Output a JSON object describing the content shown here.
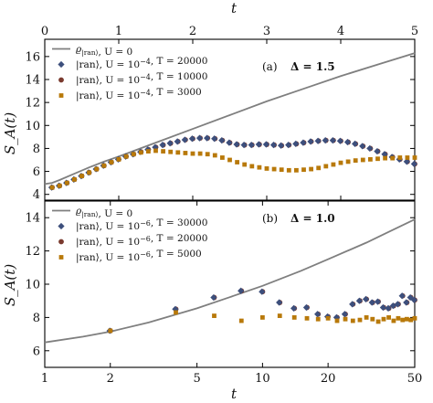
{
  "colors": {
    "line": "#7f7f7f",
    "diamond": "#3d4f7c",
    "circle": "#7a3a2e",
    "square": "#b8790a"
  },
  "chart_data": [
    {
      "id": "top",
      "type": "scatter",
      "panel_label": "(a)",
      "param_label": "Δ = 1.5",
      "xlabel": "t",
      "ylabel": "S_A(t)",
      "xscale": "linear",
      "xlim": [
        0,
        5
      ],
      "ylim": [
        3.5,
        17.5
      ],
      "xticks": [
        0,
        1,
        2,
        3,
        4,
        5
      ],
      "yticks": [
        4,
        6,
        8,
        10,
        12,
        14,
        16
      ],
      "legend_position": "top-left",
      "series": [
        {
          "name": "ϱ_|ran⟩, U = 0",
          "marker": "line",
          "color": "#7f7f7f",
          "x": [
            0,
            0.1,
            0.2,
            0.4,
            0.6,
            0.8,
            1.0,
            1.5,
            2.0,
            2.5,
            3.0,
            3.5,
            4.0,
            4.5,
            5.0
          ],
          "y": [
            4.9,
            5.0,
            5.25,
            5.8,
            6.35,
            6.85,
            7.3,
            8.5,
            9.7,
            10.9,
            12.1,
            13.2,
            14.3,
            15.3,
            16.3
          ]
        },
        {
          "name": "|ran⟩, U = 10^-4, T = 20000",
          "marker": "diamond",
          "color": "#3d4f7c",
          "x": [
            0.1,
            0.2,
            0.3,
            0.4,
            0.5,
            0.6,
            0.7,
            0.8,
            0.9,
            1.0,
            1.1,
            1.2,
            1.3,
            1.4,
            1.5,
            1.6,
            1.7,
            1.8,
            1.9,
            2.0,
            2.1,
            2.2,
            2.3,
            2.4,
            2.5,
            2.6,
            2.7,
            2.8,
            2.9,
            3.0,
            3.1,
            3.2,
            3.3,
            3.4,
            3.5,
            3.6,
            3.7,
            3.8,
            3.9,
            4.0,
            4.1,
            4.2,
            4.3,
            4.4,
            4.5,
            4.6,
            4.7,
            4.8,
            4.9,
            5.0
          ],
          "y": [
            4.6,
            4.75,
            5.0,
            5.3,
            5.6,
            5.9,
            6.2,
            6.5,
            6.8,
            7.05,
            7.3,
            7.5,
            7.7,
            7.9,
            8.1,
            8.3,
            8.45,
            8.6,
            8.75,
            8.85,
            8.9,
            8.9,
            8.85,
            8.7,
            8.5,
            8.35,
            8.3,
            8.3,
            8.35,
            8.35,
            8.3,
            8.25,
            8.3,
            8.4,
            8.5,
            8.6,
            8.65,
            8.7,
            8.7,
            8.65,
            8.55,
            8.4,
            8.2,
            8.0,
            7.75,
            7.5,
            7.25,
            7.05,
            6.85,
            6.65
          ]
        },
        {
          "name": "|ran⟩, U = 10^-4, T = 10000",
          "marker": "circle",
          "color": "#7a3a2e",
          "x": [
            0.1,
            0.2,
            0.3,
            0.4,
            0.5,
            0.6,
            0.7,
            0.8,
            0.9,
            1.0,
            1.1,
            1.2,
            1.3,
            1.4,
            1.5,
            1.6,
            1.7,
            1.8,
            1.9,
            2.0,
            2.1,
            2.2,
            2.3,
            2.4,
            2.5,
            2.6,
            2.7,
            2.8,
            2.9,
            3.0,
            3.1,
            3.2,
            3.3,
            3.4,
            3.5,
            3.6,
            3.7,
            3.8,
            3.9,
            4.0,
            4.1,
            4.2,
            4.3,
            4.4,
            4.5,
            4.6,
            4.7,
            4.8,
            4.9,
            5.0
          ],
          "y": [
            4.6,
            4.75,
            5.0,
            5.3,
            5.6,
            5.9,
            6.2,
            6.5,
            6.8,
            7.05,
            7.3,
            7.5,
            7.7,
            7.9,
            8.1,
            8.3,
            8.45,
            8.6,
            8.75,
            8.85,
            8.9,
            8.9,
            8.85,
            8.7,
            8.5,
            8.35,
            8.3,
            8.3,
            8.35,
            8.35,
            8.3,
            8.25,
            8.3,
            8.4,
            8.5,
            8.6,
            8.65,
            8.7,
            8.7,
            8.65,
            8.55,
            8.4,
            8.2,
            8.0,
            7.75,
            7.5,
            7.25,
            7.05,
            6.85,
            6.65
          ]
        },
        {
          "name": "|ran⟩, U = 10^-4, T = 3000",
          "marker": "square",
          "color": "#b8790a",
          "x": [
            0.1,
            0.2,
            0.3,
            0.4,
            0.5,
            0.6,
            0.7,
            0.8,
            0.9,
            1.0,
            1.1,
            1.2,
            1.3,
            1.4,
            1.5,
            1.6,
            1.7,
            1.8,
            1.9,
            2.0,
            2.1,
            2.2,
            2.3,
            2.4,
            2.5,
            2.6,
            2.7,
            2.8,
            2.9,
            3.0,
            3.1,
            3.2,
            3.3,
            3.4,
            3.5,
            3.6,
            3.7,
            3.8,
            3.9,
            4.0,
            4.1,
            4.2,
            4.3,
            4.4,
            4.5,
            4.6,
            4.7,
            4.8,
            4.9,
            5.0
          ],
          "y": [
            4.6,
            4.75,
            5.0,
            5.3,
            5.6,
            5.9,
            6.2,
            6.5,
            6.8,
            7.05,
            7.3,
            7.5,
            7.65,
            7.75,
            7.8,
            7.75,
            7.7,
            7.65,
            7.6,
            7.55,
            7.55,
            7.5,
            7.4,
            7.2,
            7.0,
            6.8,
            6.6,
            6.45,
            6.35,
            6.25,
            6.2,
            6.15,
            6.1,
            6.1,
            6.15,
            6.2,
            6.3,
            6.45,
            6.6,
            6.75,
            6.85,
            6.95,
            7.0,
            7.05,
            7.1,
            7.15,
            7.15,
            7.2,
            7.2,
            7.2
          ]
        }
      ]
    },
    {
      "id": "bottom",
      "type": "scatter",
      "panel_label": "(b)",
      "param_label": "Δ = 1.0",
      "xlabel": "t",
      "ylabel": "S_A(t)",
      "xscale": "log",
      "xlim": [
        1,
        50
      ],
      "ylim": [
        5,
        15
      ],
      "xticks": [
        1,
        2,
        5,
        10,
        20,
        50
      ],
      "yticks": [
        6,
        8,
        10,
        12,
        14
      ],
      "legend_position": "top-left",
      "series": [
        {
          "name": "ϱ_|ran⟩, U = 0",
          "marker": "line",
          "color": "#7f7f7f",
          "x": [
            1,
            1.5,
            2,
            3,
            5,
            7,
            10,
            15,
            20,
            30,
            50
          ],
          "y": [
            6.5,
            6.85,
            7.15,
            7.7,
            8.55,
            9.2,
            9.9,
            10.8,
            11.5,
            12.5,
            13.9
          ]
        },
        {
          "name": "|ran⟩, U = 10^-6, T = 30000",
          "marker": "diamond",
          "color": "#3d4f7c",
          "x": [
            2,
            4,
            6,
            8,
            10,
            12,
            14,
            16,
            18,
            20,
            22,
            24,
            26,
            28,
            30,
            32,
            34,
            36,
            38,
            40,
            42,
            44,
            46,
            48,
            50
          ],
          "y": [
            7.2,
            8.5,
            9.2,
            9.6,
            9.55,
            8.9,
            8.55,
            8.6,
            8.2,
            8.05,
            8.0,
            8.2,
            8.8,
            9.0,
            9.1,
            8.9,
            8.95,
            8.6,
            8.55,
            8.7,
            8.8,
            9.3,
            8.9,
            9.2,
            9.05
          ]
        },
        {
          "name": "|ran⟩, U = 10^-6, T = 20000",
          "marker": "circle",
          "color": "#7a3a2e",
          "x": [
            2,
            4,
            6,
            8,
            10,
            12,
            14,
            16,
            18,
            20,
            22,
            24,
            26,
            28,
            30,
            32,
            34,
            36,
            38,
            40,
            42,
            44,
            46,
            48,
            50
          ],
          "y": [
            7.2,
            8.5,
            9.2,
            9.6,
            9.55,
            8.9,
            8.55,
            8.6,
            8.2,
            8.05,
            8.0,
            8.2,
            8.8,
            9.0,
            9.1,
            8.9,
            8.95,
            8.6,
            8.55,
            8.7,
            8.8,
            9.3,
            8.9,
            9.2,
            9.05
          ]
        },
        {
          "name": "|ran⟩, U = 10^-6, T = 5000",
          "marker": "square",
          "color": "#b8790a",
          "x": [
            2,
            4,
            6,
            8,
            10,
            12,
            14,
            16,
            18,
            20,
            22,
            24,
            26,
            28,
            30,
            32,
            34,
            36,
            38,
            40,
            42,
            44,
            46,
            48,
            50
          ],
          "y": [
            7.2,
            8.3,
            8.1,
            7.8,
            8.0,
            8.1,
            8.0,
            7.95,
            7.9,
            7.95,
            7.8,
            7.9,
            7.8,
            7.85,
            8.0,
            7.9,
            7.75,
            7.9,
            8.0,
            7.8,
            7.95,
            7.85,
            7.9,
            7.85,
            7.95
          ]
        }
      ]
    }
  ]
}
